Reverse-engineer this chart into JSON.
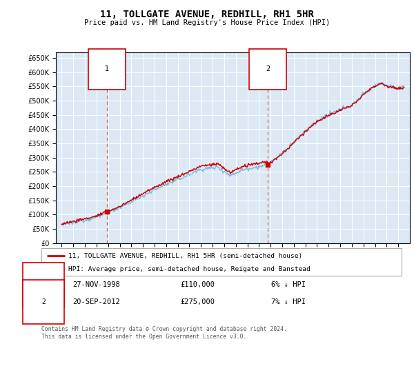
{
  "title": "11, TOLLGATE AVENUE, REDHILL, RH1 5HR",
  "subtitle": "Price paid vs. HM Land Registry's House Price Index (HPI)",
  "legend_line1": "11, TOLLGATE AVENUE, REDHILL, RH1 5HR (semi-detached house)",
  "legend_line2": "HPI: Average price, semi-detached house, Reigate and Banstead",
  "footnote": "Contains HM Land Registry data © Crown copyright and database right 2024.\nThis data is licensed under the Open Government Licence v3.0.",
  "purchase1_date": "27-NOV-1998",
  "purchase1_price": 110000,
  "purchase1_hpi": "6% ↓ HPI",
  "purchase1_year": 1998.9,
  "purchase2_date": "20-SEP-2012",
  "purchase2_price": 275000,
  "purchase2_hpi": "7% ↓ HPI",
  "purchase2_year": 2012.75,
  "hpi_color": "#7ab4d8",
  "price_color": "#cc0000",
  "vline_color": "#e06060",
  "background_color": "#dce9f5",
  "plot_bg": "#dce9f5",
  "ylim": [
    0,
    670000
  ],
  "yticks": [
    0,
    50000,
    100000,
    150000,
    200000,
    250000,
    300000,
    350000,
    400000,
    450000,
    500000,
    550000,
    600000,
    650000
  ],
  "x_start_year": 1995,
  "x_end_year": 2024
}
